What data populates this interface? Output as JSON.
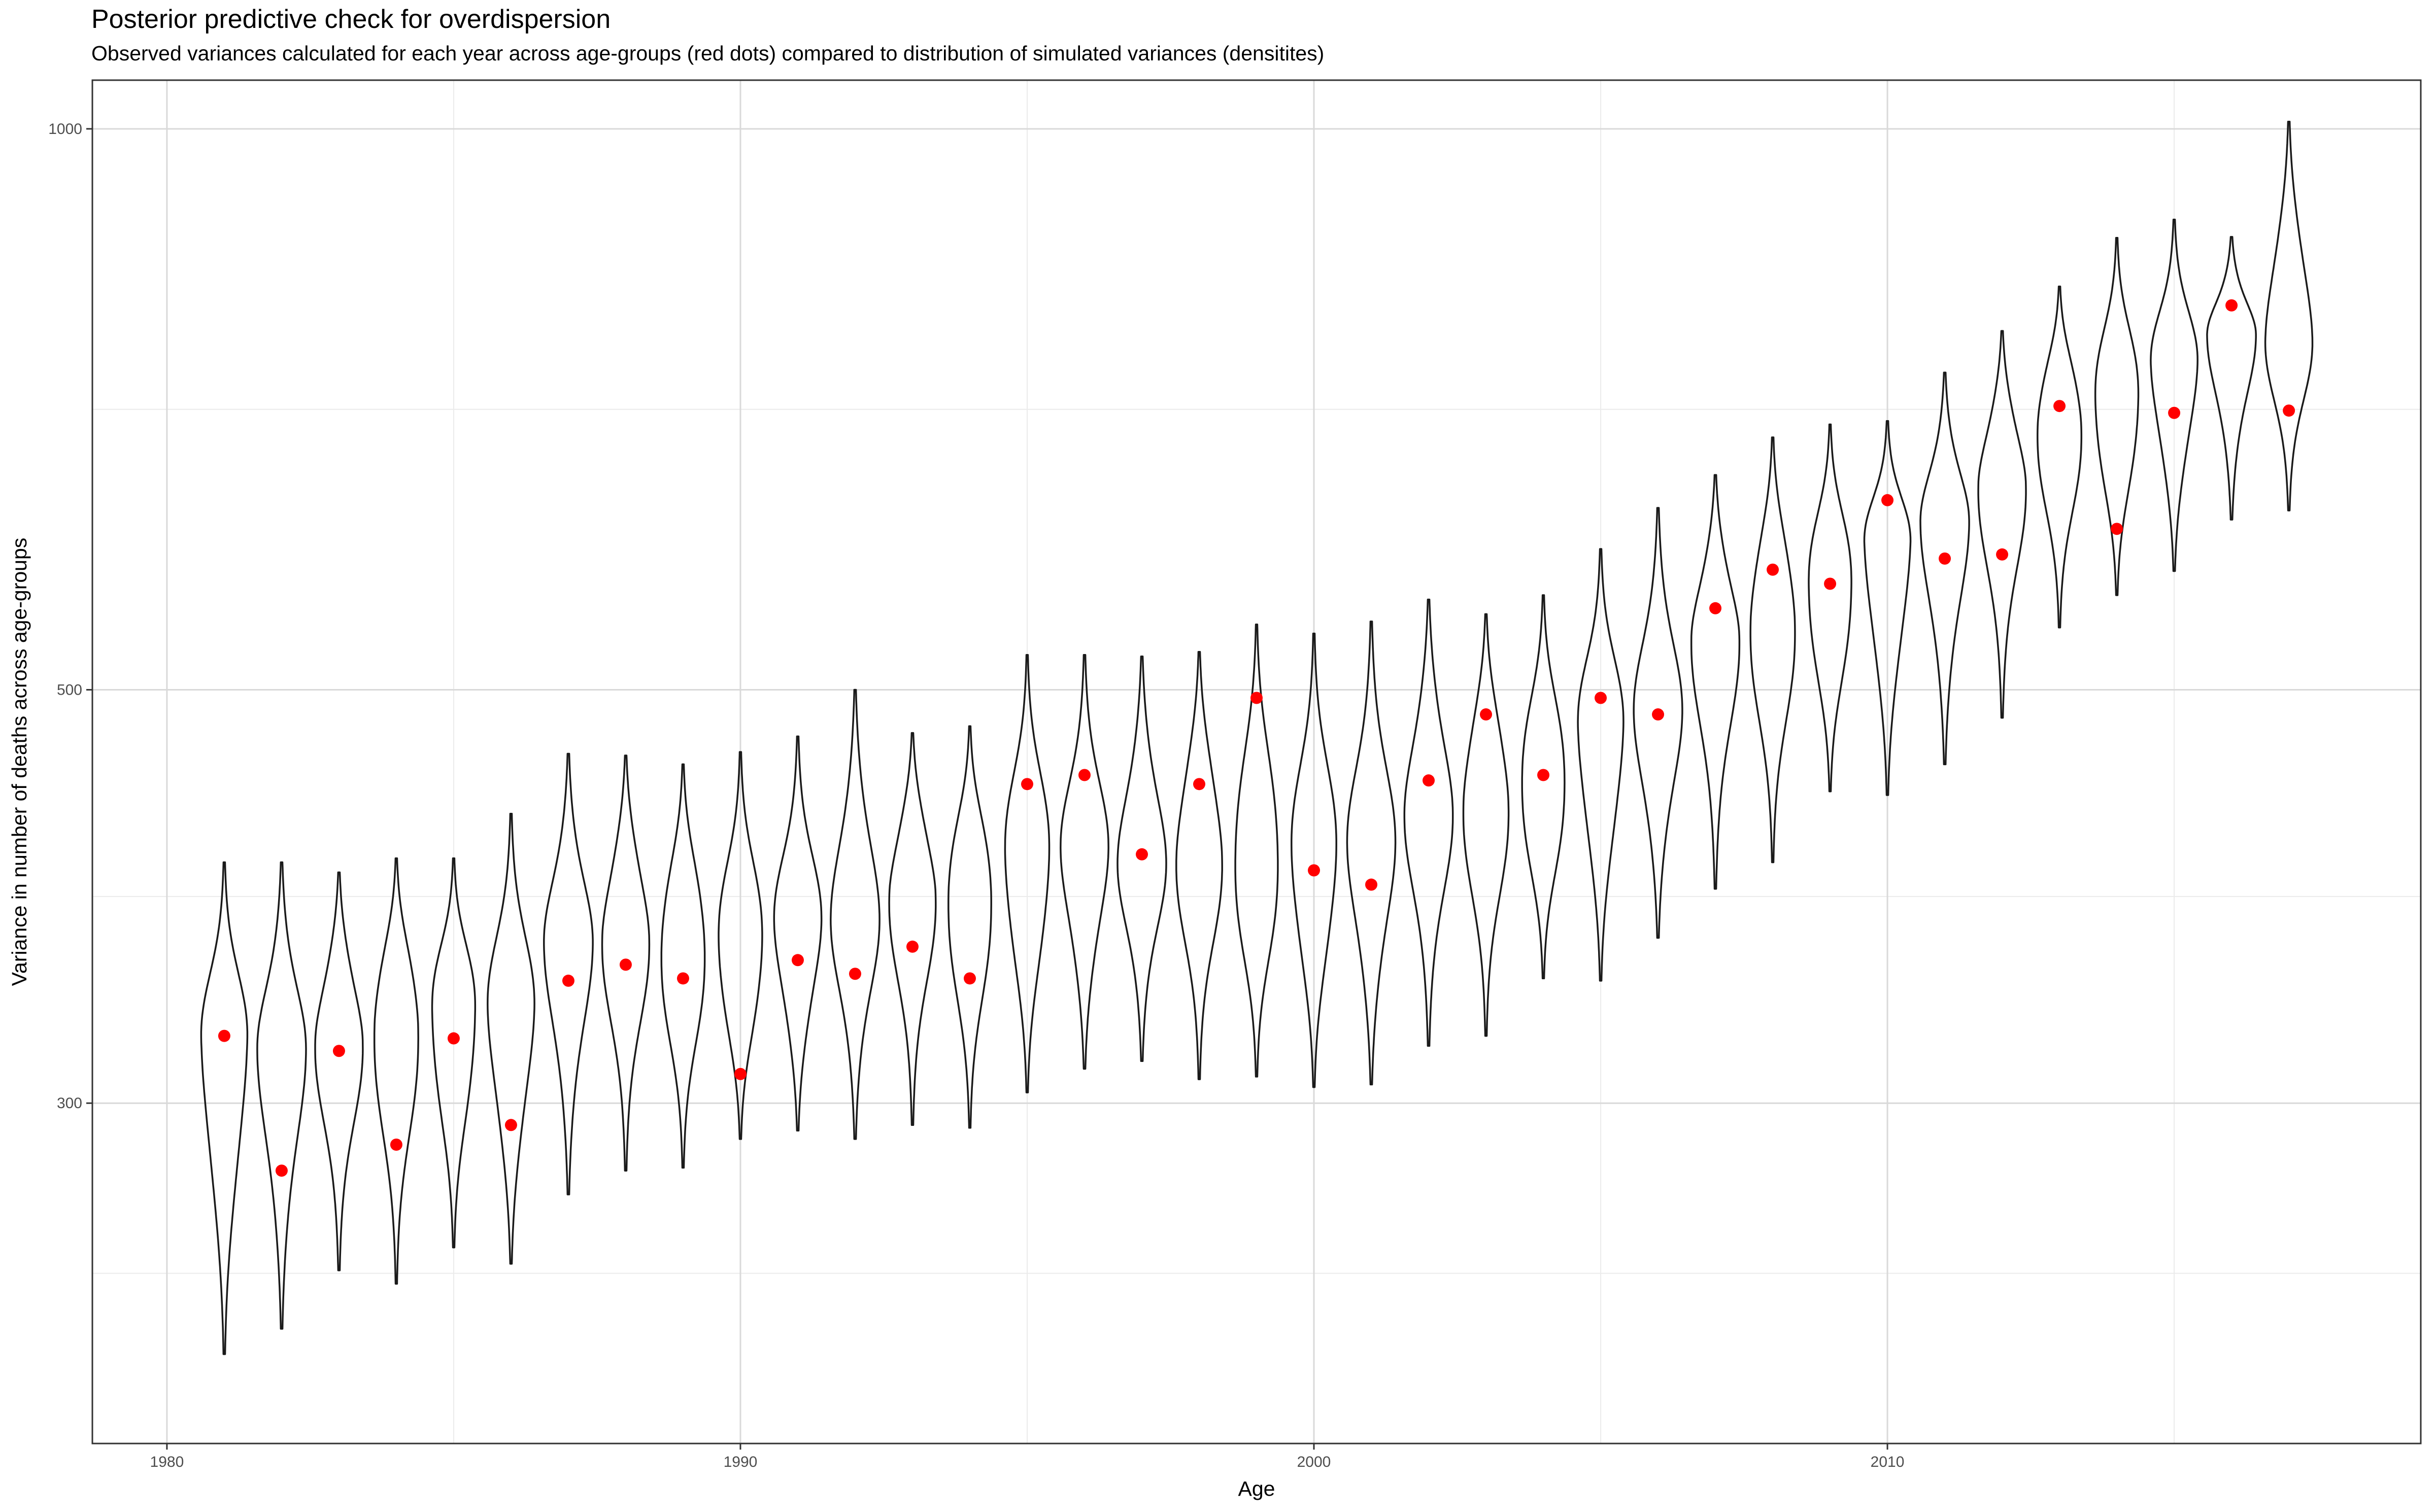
{
  "chart_data": {
    "type": "violin",
    "title": "Posterior predictive check for overdispersion",
    "subtitle": "Observed variances calculated for each year across age-groups (red dots) compared to distribution of simulated variances (densitites)",
    "xlabel": "Age",
    "ylabel": "Variance in number of deaths across age-groups",
    "xlim": [
      1978.7,
      2019.3
    ],
    "ylim": [
      197,
      1062
    ],
    "x_ticks": [
      1980,
      1990,
      2000,
      2010
    ],
    "y_ticks": [
      300,
      500,
      1000
    ],
    "y_scale": "log",
    "grid": true,
    "colors": {
      "violin": "#1a1a1a",
      "observed_point": "#ff0000",
      "grid_major": "#d9d9d9",
      "grid_minor": "#ebebeb"
    },
    "years": [
      1981,
      1982,
      1983,
      1984,
      1985,
      1986,
      1987,
      1988,
      1989,
      1990,
      1991,
      1992,
      1993,
      1994,
      1995,
      1996,
      1997,
      1998,
      1999,
      2000,
      2001,
      2002,
      2003,
      2004,
      2005,
      2006,
      2007,
      2008,
      2009,
      2010,
      2011,
      2012,
      2013,
      2014,
      2015,
      2016,
      2017
    ],
    "observed_variance": [
      326,
      276,
      320,
      285,
      325,
      292,
      349,
      356,
      350,
      311,
      358,
      352,
      364,
      350,
      445,
      450,
      408,
      445,
      495,
      400,
      393,
      447,
      485,
      450,
      495,
      485,
      553,
      580,
      570,
      632,
      588,
      591,
      710,
      610,
      704,
      804,
      706
    ],
    "simulated_min": [
      220,
      227,
      244,
      240,
      251,
      246,
      268,
      276,
      277,
      287,
      290,
      287,
      292,
      291,
      304,
      313,
      316,
      309,
      310,
      306,
      307,
      322,
      326,
      350,
      349,
      368,
      391,
      404,
      441,
      439,
      456,
      483,
      540,
      562,
      579,
      617,
      624
    ],
    "simulated_median": [
      322,
      320,
      325,
      331,
      335,
      335,
      366,
      370,
      364,
      364,
      373,
      377,
      390,
      388,
      405,
      408,
      405,
      409,
      404,
      406,
      411,
      431,
      437,
      445,
      474,
      485,
      535,
      546,
      568,
      596,
      614,
      647,
      694,
      714,
      744,
      775,
      776
    ],
    "simulated_max": [
      404,
      404,
      399,
      406,
      406,
      429,
      462,
      461,
      456,
      463,
      472,
      500,
      474,
      478,
      522,
      522,
      521,
      524,
      542,
      536,
      544,
      559,
      549,
      562,
      595,
      626,
      652,
      683,
      694,
      697,
      740,
      779,
      823,
      874,
      894,
      875,
      1009
    ]
  }
}
